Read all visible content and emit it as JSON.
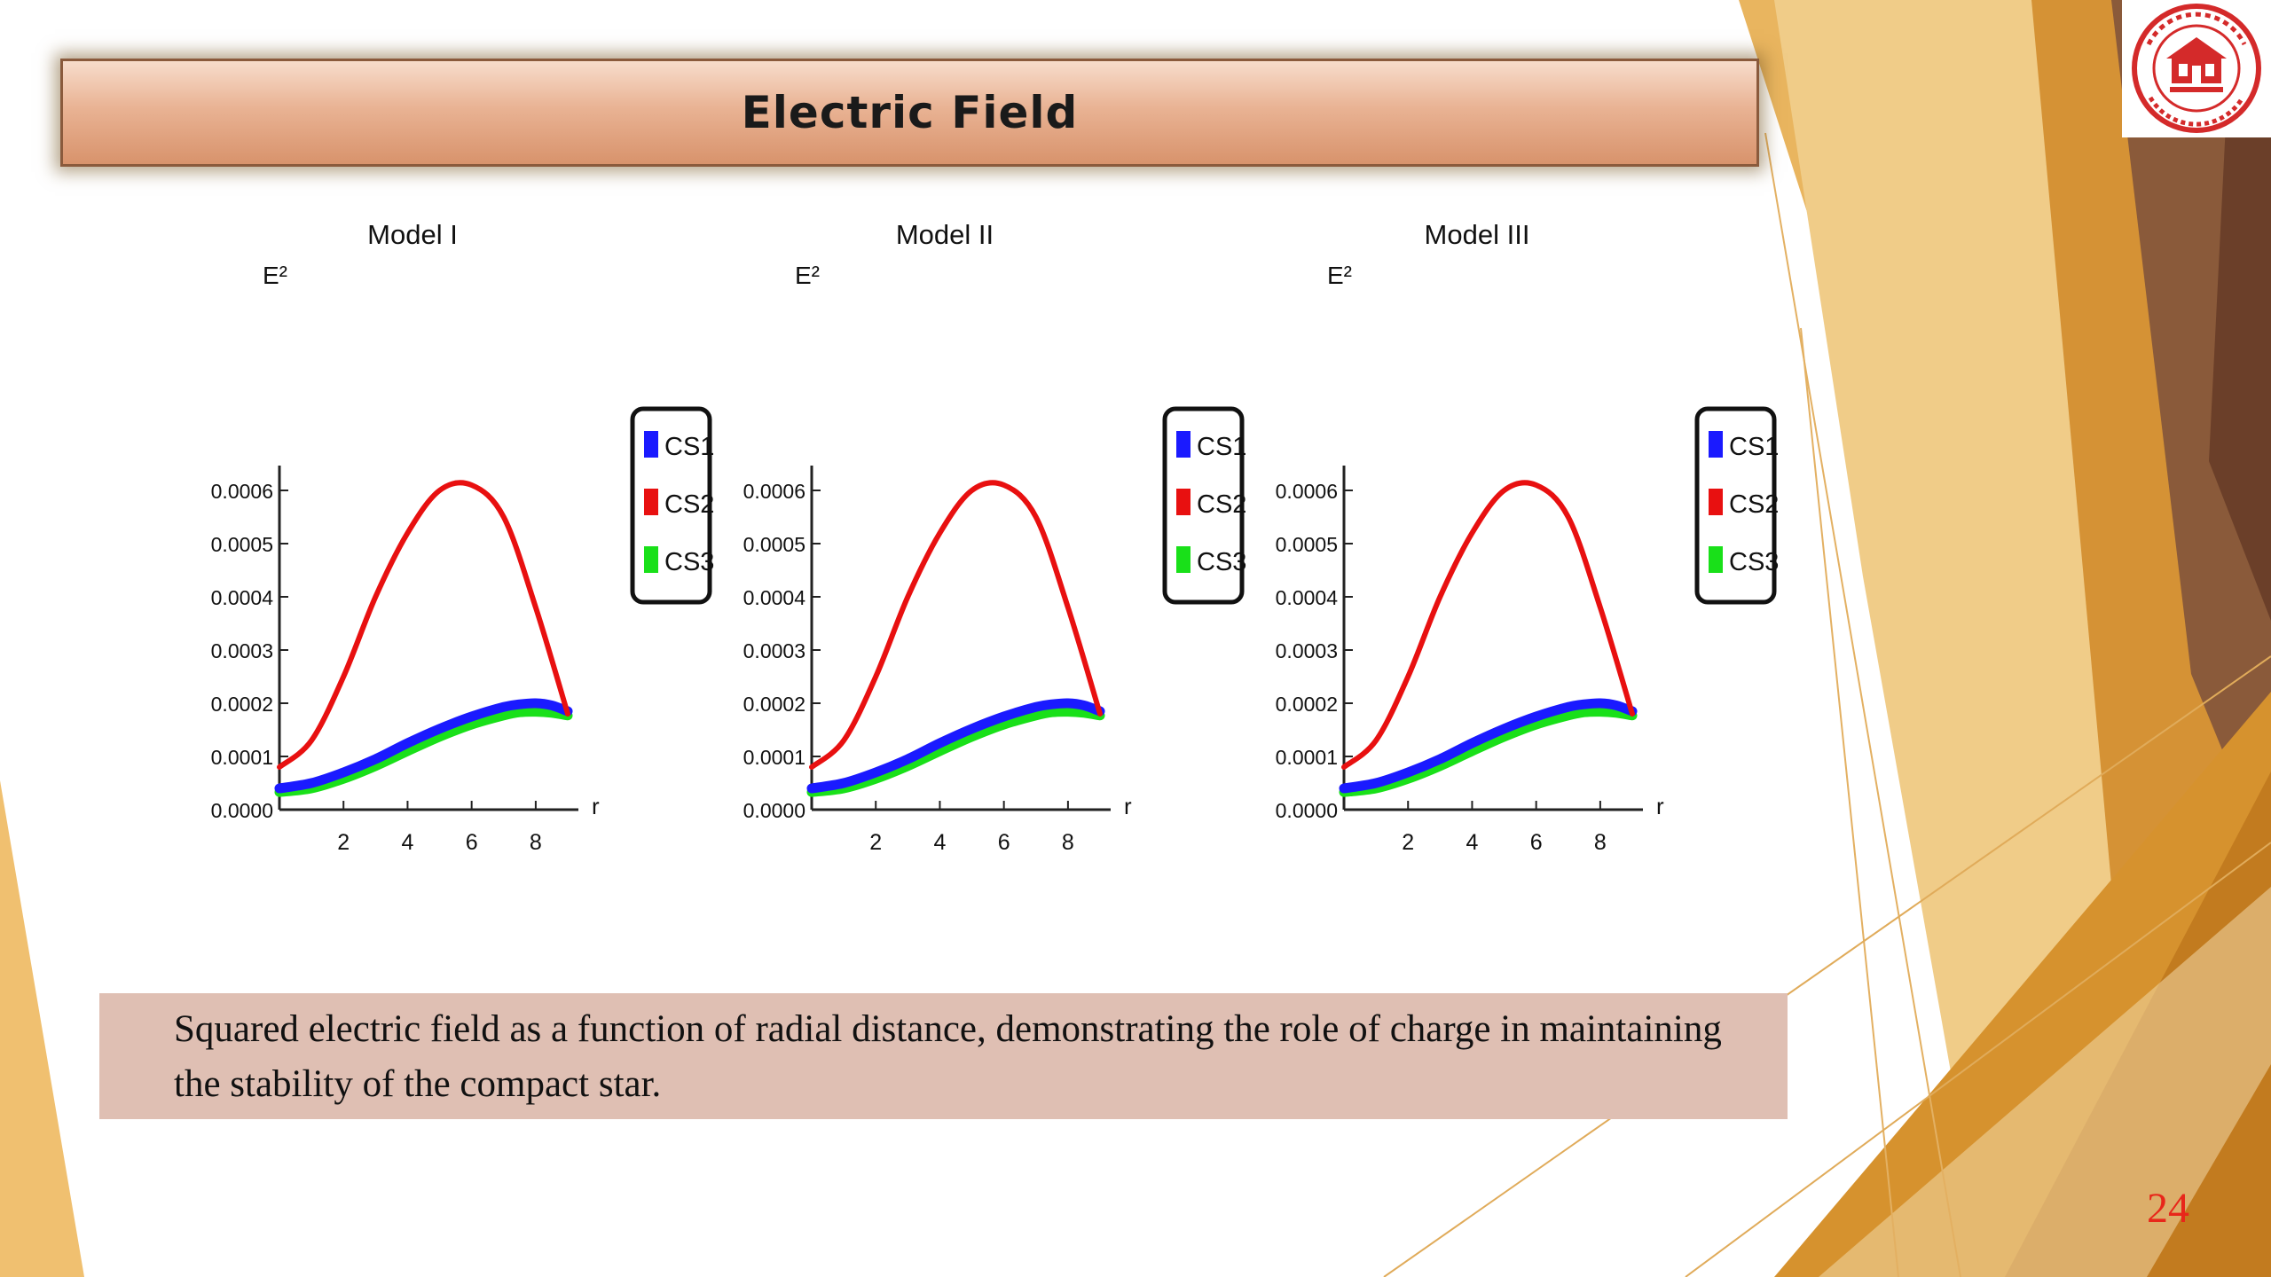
{
  "slide": {
    "title": "Electric Field",
    "caption": "Squared electric field as a function of radial distance, demonstrating the role of charge in maintaining the stability of the compact star.",
    "page_number": "24"
  },
  "colors": {
    "CS1": "#1a1aff",
    "CS2": "#e81010",
    "CS3": "#19e019",
    "caption_bg": "#dfbfb3",
    "page_number": "#e8271a"
  },
  "chart_data": [
    {
      "type": "line",
      "title": "Model I",
      "ylabel": "E²",
      "xlabel": "r",
      "x_ticks": [
        "2",
        "4",
        "6",
        "8"
      ],
      "y_ticks": [
        "0.0000",
        "0.0001",
        "0.0002",
        "0.0003",
        "0.0004",
        "0.0005",
        "0.0006"
      ],
      "xlim": [
        0,
        9
      ],
      "ylim": [
        0,
        0.0006
      ],
      "legend_position": "right",
      "series": [
        {
          "name": "CS1",
          "x": [
            0,
            1,
            2,
            3,
            4,
            5,
            6,
            7,
            7.5,
            8,
            8.5,
            9
          ],
          "y": [
            4e-05,
            5e-05,
            7e-05,
            9.5e-05,
            0.000125,
            0.000152,
            0.000175,
            0.000193,
            0.000198,
            0.0002,
            0.000196,
            0.000185
          ]
        },
        {
          "name": "CS2",
          "x": [
            0,
            1,
            2,
            3,
            4,
            5,
            6,
            7,
            8,
            9
          ],
          "y": [
            8e-05,
            0.00013,
            0.00025,
            0.0004,
            0.00052,
            0.0006,
            0.00061,
            0.00055,
            0.00038,
            0.00018
          ]
        },
        {
          "name": "CS3",
          "x": [
            0,
            1,
            2,
            3,
            4,
            5,
            6,
            7,
            7.5,
            8,
            8.5,
            9
          ],
          "y": [
            3.3e-05,
            4e-05,
            5.8e-05,
            8.2e-05,
            0.00011,
            0.000137,
            0.00016,
            0.000177,
            0.000183,
            0.000184,
            0.000182,
            0.000177
          ]
        }
      ]
    },
    {
      "type": "line",
      "title": "Model II",
      "ylabel": "E²",
      "xlabel": "r",
      "x_ticks": [
        "2",
        "4",
        "6",
        "8"
      ],
      "y_ticks": [
        "0.0000",
        "0.0001",
        "0.0002",
        "0.0003",
        "0.0004",
        "0.0005",
        "0.0006"
      ],
      "xlim": [
        0,
        9
      ],
      "ylim": [
        0,
        0.0006
      ],
      "legend_position": "right",
      "series": [
        {
          "name": "CS1",
          "x": [
            0,
            1,
            2,
            3,
            4,
            5,
            6,
            7,
            7.5,
            8,
            8.5,
            9
          ],
          "y": [
            4e-05,
            5e-05,
            7e-05,
            9.5e-05,
            0.000125,
            0.000152,
            0.000175,
            0.000193,
            0.000198,
            0.0002,
            0.000196,
            0.000185
          ]
        },
        {
          "name": "CS2",
          "x": [
            0,
            1,
            2,
            3,
            4,
            5,
            6,
            7,
            8,
            9
          ],
          "y": [
            8e-05,
            0.00013,
            0.00025,
            0.0004,
            0.00052,
            0.0006,
            0.00061,
            0.00055,
            0.00038,
            0.00018
          ]
        },
        {
          "name": "CS3",
          "x": [
            0,
            1,
            2,
            3,
            4,
            5,
            6,
            7,
            7.5,
            8,
            8.5,
            9
          ],
          "y": [
            3.3e-05,
            4e-05,
            5.8e-05,
            8.2e-05,
            0.00011,
            0.000137,
            0.00016,
            0.000177,
            0.000183,
            0.000184,
            0.000182,
            0.000177
          ]
        }
      ]
    },
    {
      "type": "line",
      "title": "Model III",
      "ylabel": "E²",
      "xlabel": "r",
      "x_ticks": [
        "2",
        "4",
        "6",
        "8"
      ],
      "y_ticks": [
        "0.0000",
        "0.0001",
        "0.0002",
        "0.0003",
        "0.0004",
        "0.0005",
        "0.0006"
      ],
      "xlim": [
        0,
        9
      ],
      "ylim": [
        0,
        0.0006
      ],
      "legend_position": "right",
      "series": [
        {
          "name": "CS1",
          "x": [
            0,
            1,
            2,
            3,
            4,
            5,
            6,
            7,
            7.5,
            8,
            8.5,
            9
          ],
          "y": [
            4e-05,
            5e-05,
            7e-05,
            9.5e-05,
            0.000125,
            0.000152,
            0.000175,
            0.000193,
            0.000198,
            0.0002,
            0.000196,
            0.000185
          ]
        },
        {
          "name": "CS2",
          "x": [
            0,
            1,
            2,
            3,
            4,
            5,
            6,
            7,
            8,
            9
          ],
          "y": [
            8e-05,
            0.00013,
            0.00025,
            0.0004,
            0.00052,
            0.0006,
            0.00061,
            0.00055,
            0.00038,
            0.00018
          ]
        },
        {
          "name": "CS3",
          "x": [
            0,
            1,
            2,
            3,
            4,
            5,
            6,
            7,
            7.5,
            8,
            8.5,
            9
          ],
          "y": [
            3.3e-05,
            4e-05,
            5.8e-05,
            8.2e-05,
            0.00011,
            0.000137,
            0.00016,
            0.000177,
            0.000183,
            0.000184,
            0.000182,
            0.000177
          ]
        }
      ]
    }
  ]
}
